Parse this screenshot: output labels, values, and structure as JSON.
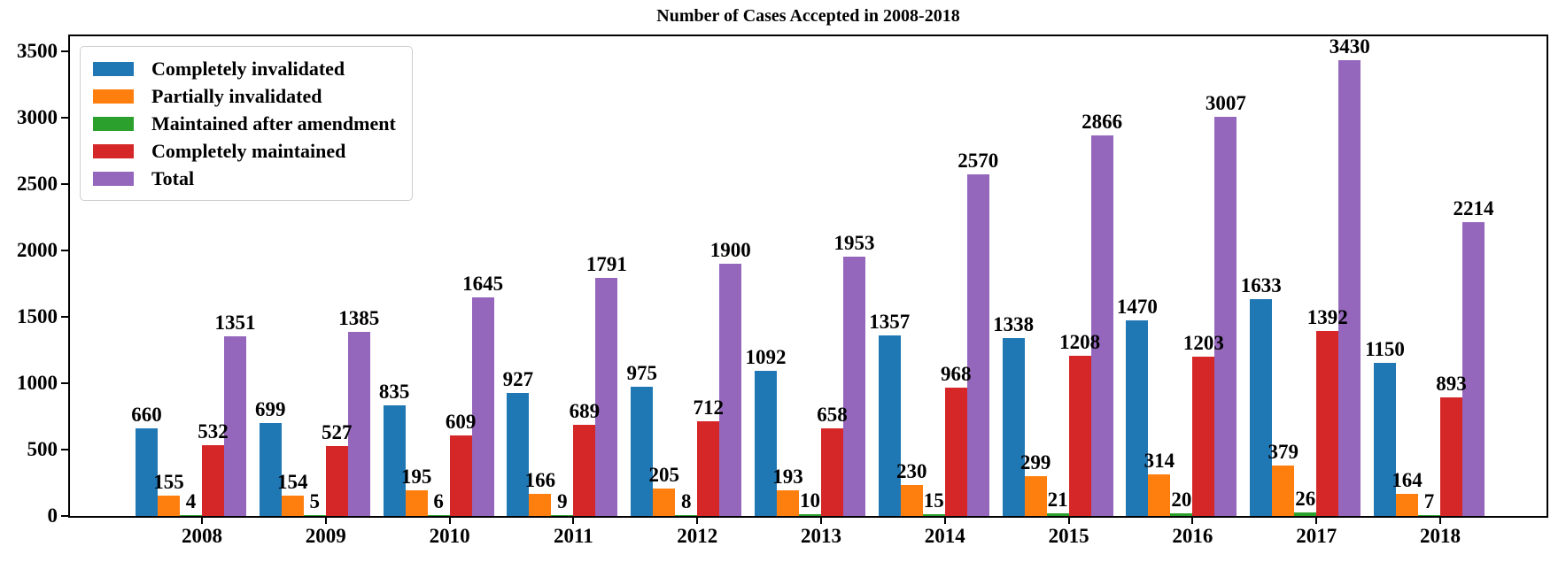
{
  "chart_data": {
    "type": "bar",
    "title": "Number of Cases Accepted in 2008-2018",
    "xlabel": "",
    "ylabel": "",
    "categories": [
      "2008",
      "2009",
      "2010",
      "2011",
      "2012",
      "2013",
      "2014",
      "2015",
      "2016",
      "2017",
      "2018"
    ],
    "series": [
      {
        "name": "Completely invalidated",
        "color": "#1f77b4",
        "values": [
          660,
          699,
          835,
          927,
          975,
          1092,
          1357,
          1338,
          1470,
          1633,
          1150
        ]
      },
      {
        "name": "Partially invalidated",
        "color": "#ff7f0e",
        "values": [
          155,
          154,
          195,
          166,
          205,
          193,
          230,
          299,
          314,
          379,
          164
        ]
      },
      {
        "name": "Maintained after amendment",
        "color": "#2ca02c",
        "values": [
          4,
          5,
          6,
          9,
          8,
          10,
          15,
          21,
          20,
          26,
          7
        ]
      },
      {
        "name": "Completely maintained",
        "color": "#d62728",
        "values": [
          532,
          527,
          609,
          689,
          712,
          658,
          968,
          1208,
          1203,
          1392,
          893
        ]
      },
      {
        "name": "Total",
        "color": "#9467bd",
        "values": [
          1351,
          1385,
          1645,
          1791,
          1900,
          1953,
          2570,
          2866,
          3007,
          3430,
          2214
        ]
      }
    ],
    "yticks": [
      0,
      500,
      1000,
      1500,
      2000,
      2500,
      3000,
      3500
    ],
    "ylim": [
      0,
      3613
    ],
    "bar_value_labels": true,
    "grid": false,
    "legend_position": "upper left",
    "axis_color": "#000000",
    "text_color": "#000000",
    "background_color": "#ffffff"
  }
}
